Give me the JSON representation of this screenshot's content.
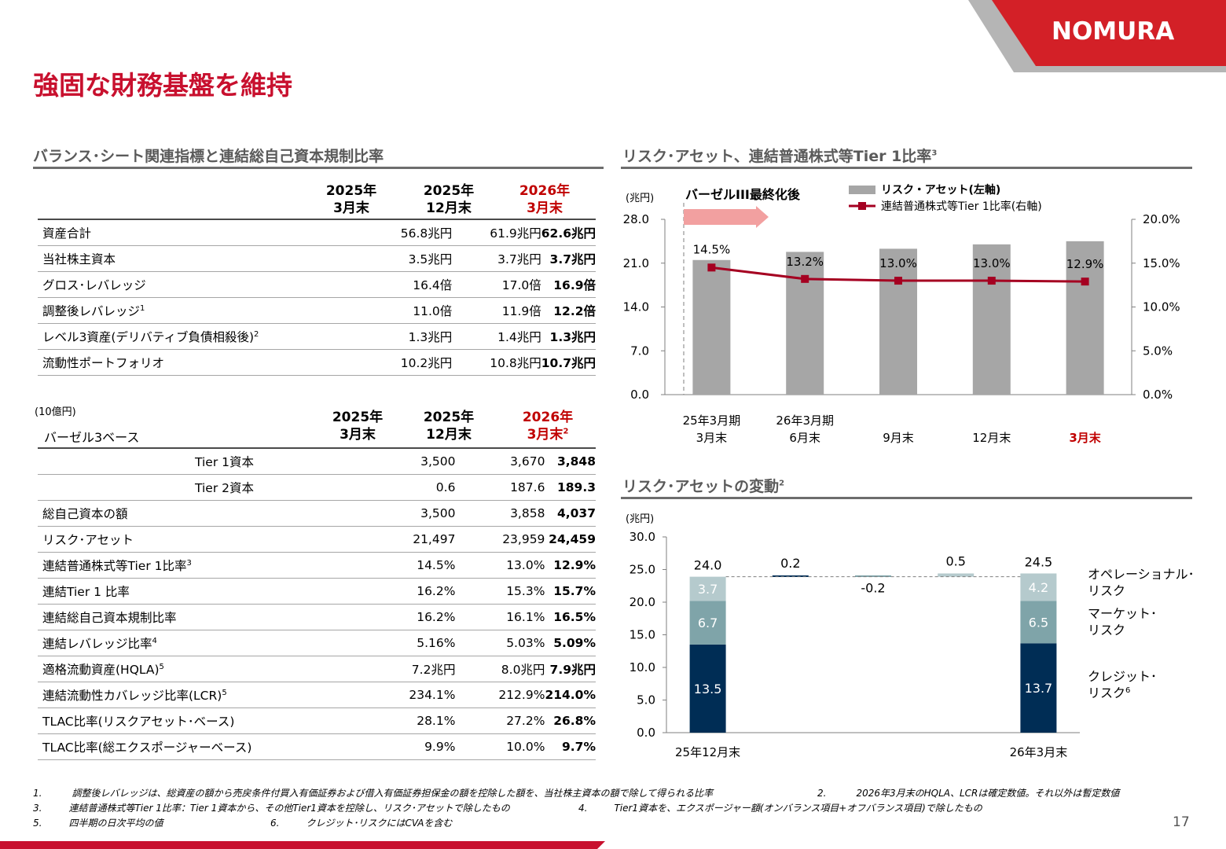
{
  "brand": {
    "logo_text": "NOMURA",
    "accent_color": "#c8102e"
  },
  "page": {
    "title": "強固な財務基盤を維持",
    "page_number": "17"
  },
  "bs_section": {
    "title": "バランス･シート関連指標と連結総自己資本規制比率",
    "columns": [
      {
        "line1": "2025年",
        "line2": "3月末"
      },
      {
        "line1": "2025年",
        "line2": "12月末"
      },
      {
        "line1": "2026年",
        "line2": "3月末"
      }
    ],
    "rows": [
      {
        "label": "資産合計",
        "sup": "",
        "v1": "56.8兆円",
        "v2": "61.9兆円",
        "v3": "62.6兆円"
      },
      {
        "label": "当社株主資本",
        "sup": "",
        "v1": "3.5兆円",
        "v2": "3.7兆円",
        "v3": "3.7兆円"
      },
      {
        "label": "グロス･レバレッジ",
        "sup": "",
        "v1": "16.4倍",
        "v2": "17.0倍",
        "v3": "16.9倍"
      },
      {
        "label": "調整後レバレッジ",
        "sup": "1",
        "v1": "11.0倍",
        "v2": "11.9倍",
        "v3": "12.2倍"
      },
      {
        "label": "レベル3資産(デリバティブ負債相殺後)",
        "sup": "2",
        "v1": "1.3兆円",
        "v2": "1.4兆円",
        "v3": "1.3兆円"
      },
      {
        "label": "流動性ポートフォリオ",
        "sup": "",
        "v1": "10.2兆円",
        "v2": "10.8兆円",
        "v3": "10.7兆円"
      }
    ]
  },
  "basel_section": {
    "unit": "(10億円)",
    "subtitle": "バーゼル3ベース",
    "columns": [
      {
        "line1": "2025年",
        "line2": "3月末",
        "sup": ""
      },
      {
        "line1": "2025年",
        "line2": "12月末",
        "sup": ""
      },
      {
        "line1": "2026年",
        "line2": "3月末",
        "sup": "2"
      }
    ],
    "rows": [
      {
        "label": "Tier 1資本",
        "sup": "",
        "indent": true,
        "v1": "3,500",
        "v2": "3,670",
        "v3": "3,848"
      },
      {
        "label": "Tier 2資本",
        "sup": "",
        "indent": true,
        "v1": "0.6",
        "v2": "187.6",
        "v3": "189.3"
      },
      {
        "label": "総自己資本の額",
        "sup": "",
        "indent": false,
        "v1": "3,500",
        "v2": "3,858",
        "v3": "4,037"
      },
      {
        "label": "リスク･アセット",
        "sup": "",
        "indent": false,
        "v1": "21,497",
        "v2": "23,959",
        "v3": "24,459"
      },
      {
        "label": "連結普通株式等Tier 1比率",
        "sup": "3",
        "indent": false,
        "v1": "14.5%",
        "v2": "13.0%",
        "v3": "12.9%"
      },
      {
        "label": "連結Tier 1 比率",
        "sup": "",
        "indent": false,
        "v1": "16.2%",
        "v2": "15.3%",
        "v3": "15.7%"
      },
      {
        "label": "連結総自己資本規制比率",
        "sup": "",
        "indent": false,
        "v1": "16.2%",
        "v2": "16.1%",
        "v3": "16.5%"
      },
      {
        "label": "連結レバレッジ比率",
        "sup": "4",
        "indent": false,
        "v1": "5.16%",
        "v2": "5.03%",
        "v3": "5.09%"
      },
      {
        "label": "適格流動資産(HQLA)",
        "sup": "5",
        "indent": false,
        "v1": "7.2兆円",
        "v2": "8.0兆円",
        "v3": "7.9兆円"
      },
      {
        "label": "連結流動性カバレッジ比率(LCR)",
        "sup": "5",
        "indent": false,
        "v1": "234.1%",
        "v2": "212.9%",
        "v3": "214.0%"
      },
      {
        "label": "TLAC比率(リスクアセット･ベース)",
        "sup": "",
        "indent": false,
        "v1": "28.1%",
        "v2": "27.2%",
        "v3": "26.8%"
      },
      {
        "label": "TLAC比率(総エクスポージャーベース)",
        "sup": "",
        "indent": false,
        "v1": "9.9%",
        "v2": "10.0%",
        "v3": "9.7%"
      }
    ]
  },
  "chart1_section": {
    "title": "リスク･アセット、連結普通株式等Tier 1比率",
    "title_sup": "3",
    "annotation": "バーゼルIII最終化後",
    "y_unit": "(兆円)",
    "highlight_color": "#c00000"
  },
  "chart2_section": {
    "title": "リスク･アセットの変動",
    "title_sup": "2",
    "y_unit": "(兆円)",
    "side_labels": [
      {
        "line1": "オペレーショナル･",
        "line2": "リスク",
        "sup": ""
      },
      {
        "line1": "マーケット･",
        "line2": "リスク",
        "sup": ""
      },
      {
        "line1": "クレジット･",
        "line2": "リスク",
        "sup": "6"
      }
    ]
  },
  "chart_data": [
    {
      "type": "bar",
      "categories": [
        {
          "line1": "25年3月期",
          "line2": "3月末"
        },
        {
          "line1": "26年3月期",
          "line2": "6月末"
        },
        {
          "line1": "",
          "line2": "9月末"
        },
        {
          "line1": "",
          "line2": "12月末"
        },
        {
          "line1": "",
          "line2": "3月末"
        }
      ],
      "series": [
        {
          "name": "リスク・アセット(左軸)",
          "axis": "left",
          "type": "bar",
          "color": "#a6a6a6",
          "values": [
            21.5,
            22.8,
            23.3,
            24.0,
            24.5
          ]
        },
        {
          "name": "連結普通株式等Tier 1比率(右軸)",
          "axis": "right",
          "type": "line",
          "color": "#a50021",
          "values": [
            14.5,
            13.2,
            13.0,
            13.0,
            12.9
          ],
          "labels": [
            "14.5%",
            "13.2%",
            "13.0%",
            "13.0%",
            "12.9%"
          ]
        }
      ],
      "ylim_left": [
        0,
        28
      ],
      "ylim_right": [
        0,
        20
      ],
      "yticks_left": [
        "0.0",
        "7.0",
        "14.0",
        "21.0",
        "28.0"
      ],
      "yticks_right": [
        "0.0%",
        "5.0%",
        "10.0%",
        "15.0%",
        "20.0%"
      ],
      "legend_position": "top"
    },
    {
      "type": "bar",
      "subtype": "waterfall",
      "ylim": [
        0,
        30
      ],
      "yticks": [
        "0.0",
        "5.0",
        "10.0",
        "15.0",
        "20.0",
        "25.0",
        "30.0"
      ],
      "stacks": [
        {
          "label": "25年12月末",
          "total": "24.0",
          "segments": [
            {
              "value": 13.5,
              "label": "13.5",
              "color": "#002d55"
            },
            {
              "value": 6.7,
              "label": "6.7",
              "color": "#7fa4a9"
            },
            {
              "value": 3.7,
              "label": "3.7",
              "color": "#b5cacd"
            }
          ]
        },
        {
          "label": "26年3月末",
          "total": "24.5",
          "segments": [
            {
              "value": 13.7,
              "label": "13.7",
              "color": "#002d55"
            },
            {
              "value": 6.5,
              "label": "6.5",
              "color": "#7fa4a9"
            },
            {
              "value": 4.2,
              "label": "4.2",
              "color": "#b5cacd"
            }
          ]
        }
      ],
      "changes": [
        {
          "value": 0.2,
          "label": "0.2",
          "color": "#002d55"
        },
        {
          "value": -0.2,
          "label": "-0.2",
          "color": "#7fa4a9"
        },
        {
          "value": 0.5,
          "label": "0.5",
          "color": "#b5cacd"
        }
      ]
    }
  ],
  "footnotes": [
    {
      "num": "1.",
      "text": "調整後レバレッジは、総資産の額から売戻条件付買入有価証券および借入有価証券担保金の額を控除した額を、当社株主資本の額で除して得られる比率"
    },
    {
      "num": "2.",
      "text": "2026年3月末のHQLA、LCRは確定数値。それ以外は暫定数値"
    },
    {
      "num": "3.",
      "text": "連結普通株式等Tier 1比率：Tier 1資本から、その他Tier1資本を控除し、リスク･アセットで除したもの"
    },
    {
      "num": "4.",
      "text": "Tier1資本を、エクスポージャー額(オンバランス項目+オフバランス項目)で除したもの"
    },
    {
      "num": "5.",
      "text": "四半期の日次平均の値"
    },
    {
      "num": "6.",
      "text": "クレジット･リスクにはCVAを含む"
    }
  ]
}
